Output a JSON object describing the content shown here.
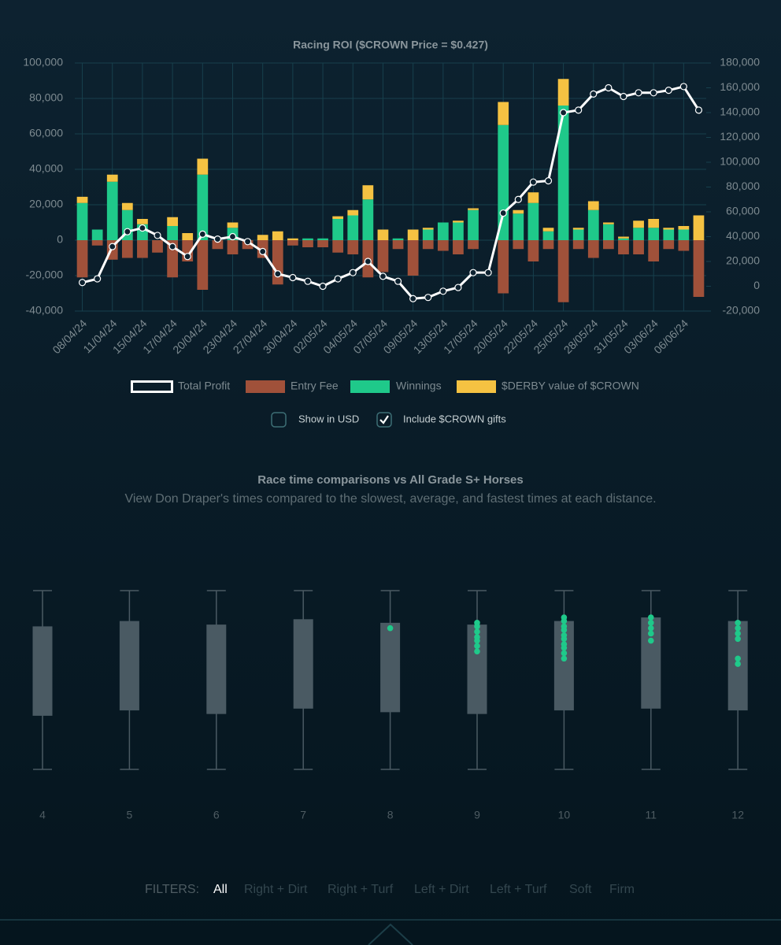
{
  "chart_data": [
    {
      "type": "bar",
      "title": "Racing ROI ($CROWN Price = $0.427)",
      "categories": [
        "08/04/24",
        null,
        "11/04/24",
        null,
        "15/04/24",
        null,
        "17/04/24",
        null,
        "20/04/24",
        null,
        "23/04/24",
        null,
        "27/04/24",
        null,
        "30/04/24",
        null,
        "02/05/24",
        null,
        "04/05/24",
        null,
        "07/05/24",
        null,
        "09/05/24",
        null,
        "13/05/24",
        null,
        "17/05/24",
        null,
        "20/05/24",
        null,
        "22/05/24",
        null,
        "25/05/24",
        null,
        "28/05/24",
        null,
        "31/05/24",
        null,
        "03/06/24",
        null,
        "06/06/24",
        null
      ],
      "series": [
        {
          "name": "Total Profit",
          "color": "#ffffff",
          "type": "line",
          "axis": "y2",
          "values": [
            3000,
            6000,
            32000,
            44000,
            47000,
            41000,
            32000,
            24000,
            42000,
            38000,
            40000,
            36000,
            28000,
            10000,
            7000,
            4000,
            0,
            6000,
            11000,
            20000,
            8000,
            4000,
            -10000,
            -9000,
            -4000,
            -1000,
            11000,
            11000,
            59000,
            70000,
            84000,
            85000,
            140000,
            142000,
            155000,
            160000,
            153000,
            156000,
            156000,
            158000,
            161000,
            142000
          ]
        },
        {
          "name": "Entry Fee",
          "color": "#a0513a",
          "values": [
            -21000,
            -3000,
            -11000,
            -10000,
            -10000,
            -7000,
            -21000,
            -12000,
            -28000,
            -5000,
            -8000,
            -5000,
            -10000,
            -25000,
            -3000,
            -4000,
            -4000,
            -7000,
            -8000,
            -21000,
            -18000,
            -5000,
            -20000,
            -5000,
            -6000,
            -8000,
            -5000,
            0,
            -30000,
            -5000,
            -12000,
            -5000,
            -35000,
            -5000,
            -10000,
            -5000,
            -8000,
            -8000,
            -12000,
            -5000,
            -6000,
            -32000
          ]
        },
        {
          "name": "Winnings",
          "color": "#1fc98a",
          "values": [
            21000,
            6000,
            33000,
            17000,
            9000,
            0,
            8000,
            0,
            37000,
            0,
            7000,
            0,
            0,
            0,
            0,
            1000,
            1000,
            12000,
            14000,
            23000,
            0,
            1000,
            0,
            6000,
            10000,
            10000,
            17000,
            0,
            65000,
            15000,
            21000,
            5000,
            76000,
            6000,
            17000,
            9000,
            1000,
            7000,
            7000,
            6000,
            6000,
            0
          ]
        },
        {
          "name": "$DERBY value of $CROWN",
          "color": "#f5c242",
          "values": [
            3500,
            0,
            4000,
            4000,
            3000,
            0,
            5000,
            4000,
            9000,
            0,
            3000,
            0,
            3000,
            5000,
            1000,
            0,
            0,
            1500,
            3000,
            8000,
            6000,
            0,
            6000,
            1000,
            0,
            1000,
            1000,
            0,
            13000,
            2000,
            6000,
            2000,
            15000,
            1000,
            5000,
            1000,
            1000,
            4000,
            5000,
            1000,
            2000,
            14000
          ]
        }
      ],
      "ylim": [
        -40000,
        100000
      ],
      "yticks": [
        {
          "value": -40000,
          "label": "-40,000"
        },
        {
          "value": -20000,
          "label": "-20,000"
        },
        0,
        {
          "value": 20000,
          "label": "20,000"
        },
        {
          "value": 40000,
          "label": "40,000"
        },
        {
          "value": 60000,
          "label": "60,000"
        },
        {
          "value": 80000,
          "label": "80,000"
        },
        {
          "value": 100000,
          "label": "100,000"
        }
      ],
      "y2lim": [
        -20000,
        180000
      ],
      "y2ticks": [
        {
          "value": -20000,
          "label": "-20,000"
        },
        0,
        {
          "value": 20000,
          "label": "20,000"
        },
        {
          "value": 40000,
          "label": "40,000"
        },
        {
          "value": 60000,
          "label": "60,000"
        },
        {
          "value": 80000,
          "label": "80,000"
        },
        {
          "value": 100000,
          "label": "100,000"
        },
        {
          "value": 120000,
          "label": "120,000"
        },
        {
          "value": 140000,
          "label": "140,000"
        },
        {
          "value": 160000,
          "label": "160,000"
        },
        {
          "value": 180000,
          "label": "180,000"
        }
      ],
      "grid": true,
      "legend": "bottom"
    },
    {
      "type": "box",
      "title": "Race time comparisons vs All Grade S+ Horses",
      "subtitle": "View Don Draper's times compared to the slowest, average, and fastest times at each distance.",
      "categories": [
        "4",
        "5",
        "6",
        "7",
        "8",
        "9",
        "10",
        "11",
        "12"
      ],
      "min": [
        0,
        0,
        0,
        0,
        0,
        0,
        0,
        0,
        0
      ],
      "q1": [
        30,
        33,
        31,
        34,
        32,
        31,
        33,
        34,
        33
      ],
      "q3": [
        80,
        83,
        81,
        84,
        82,
        81,
        83,
        85,
        83
      ],
      "max": [
        100,
        100,
        100,
        100,
        100,
        100,
        100,
        100,
        100
      ],
      "points": [
        [],
        [],
        [],
        [],
        [
          79
        ],
        [
          82,
          80,
          77,
          74,
          72,
          69,
          66
        ],
        [
          85,
          83,
          80,
          78,
          75,
          73,
          70,
          68,
          65,
          62
        ],
        [
          85,
          82,
          79,
          76,
          72
        ],
        [
          82,
          79,
          76,
          73,
          62,
          59
        ]
      ],
      "color": "#4a5a63",
      "point_color": "#1fc98a",
      "ylim": [
        0,
        100
      ]
    }
  ],
  "controls": [
    {
      "label": "Show in USD",
      "checked": false
    },
    {
      "label": "Include $CROWN gifts",
      "checked": true
    }
  ],
  "filters": {
    "label": "FILTERS:",
    "options": [
      "All",
      "Right + Dirt",
      "Right + Turf",
      "Left + Dirt",
      "Left + Turf",
      "Soft",
      "Firm"
    ],
    "active": 0
  }
}
